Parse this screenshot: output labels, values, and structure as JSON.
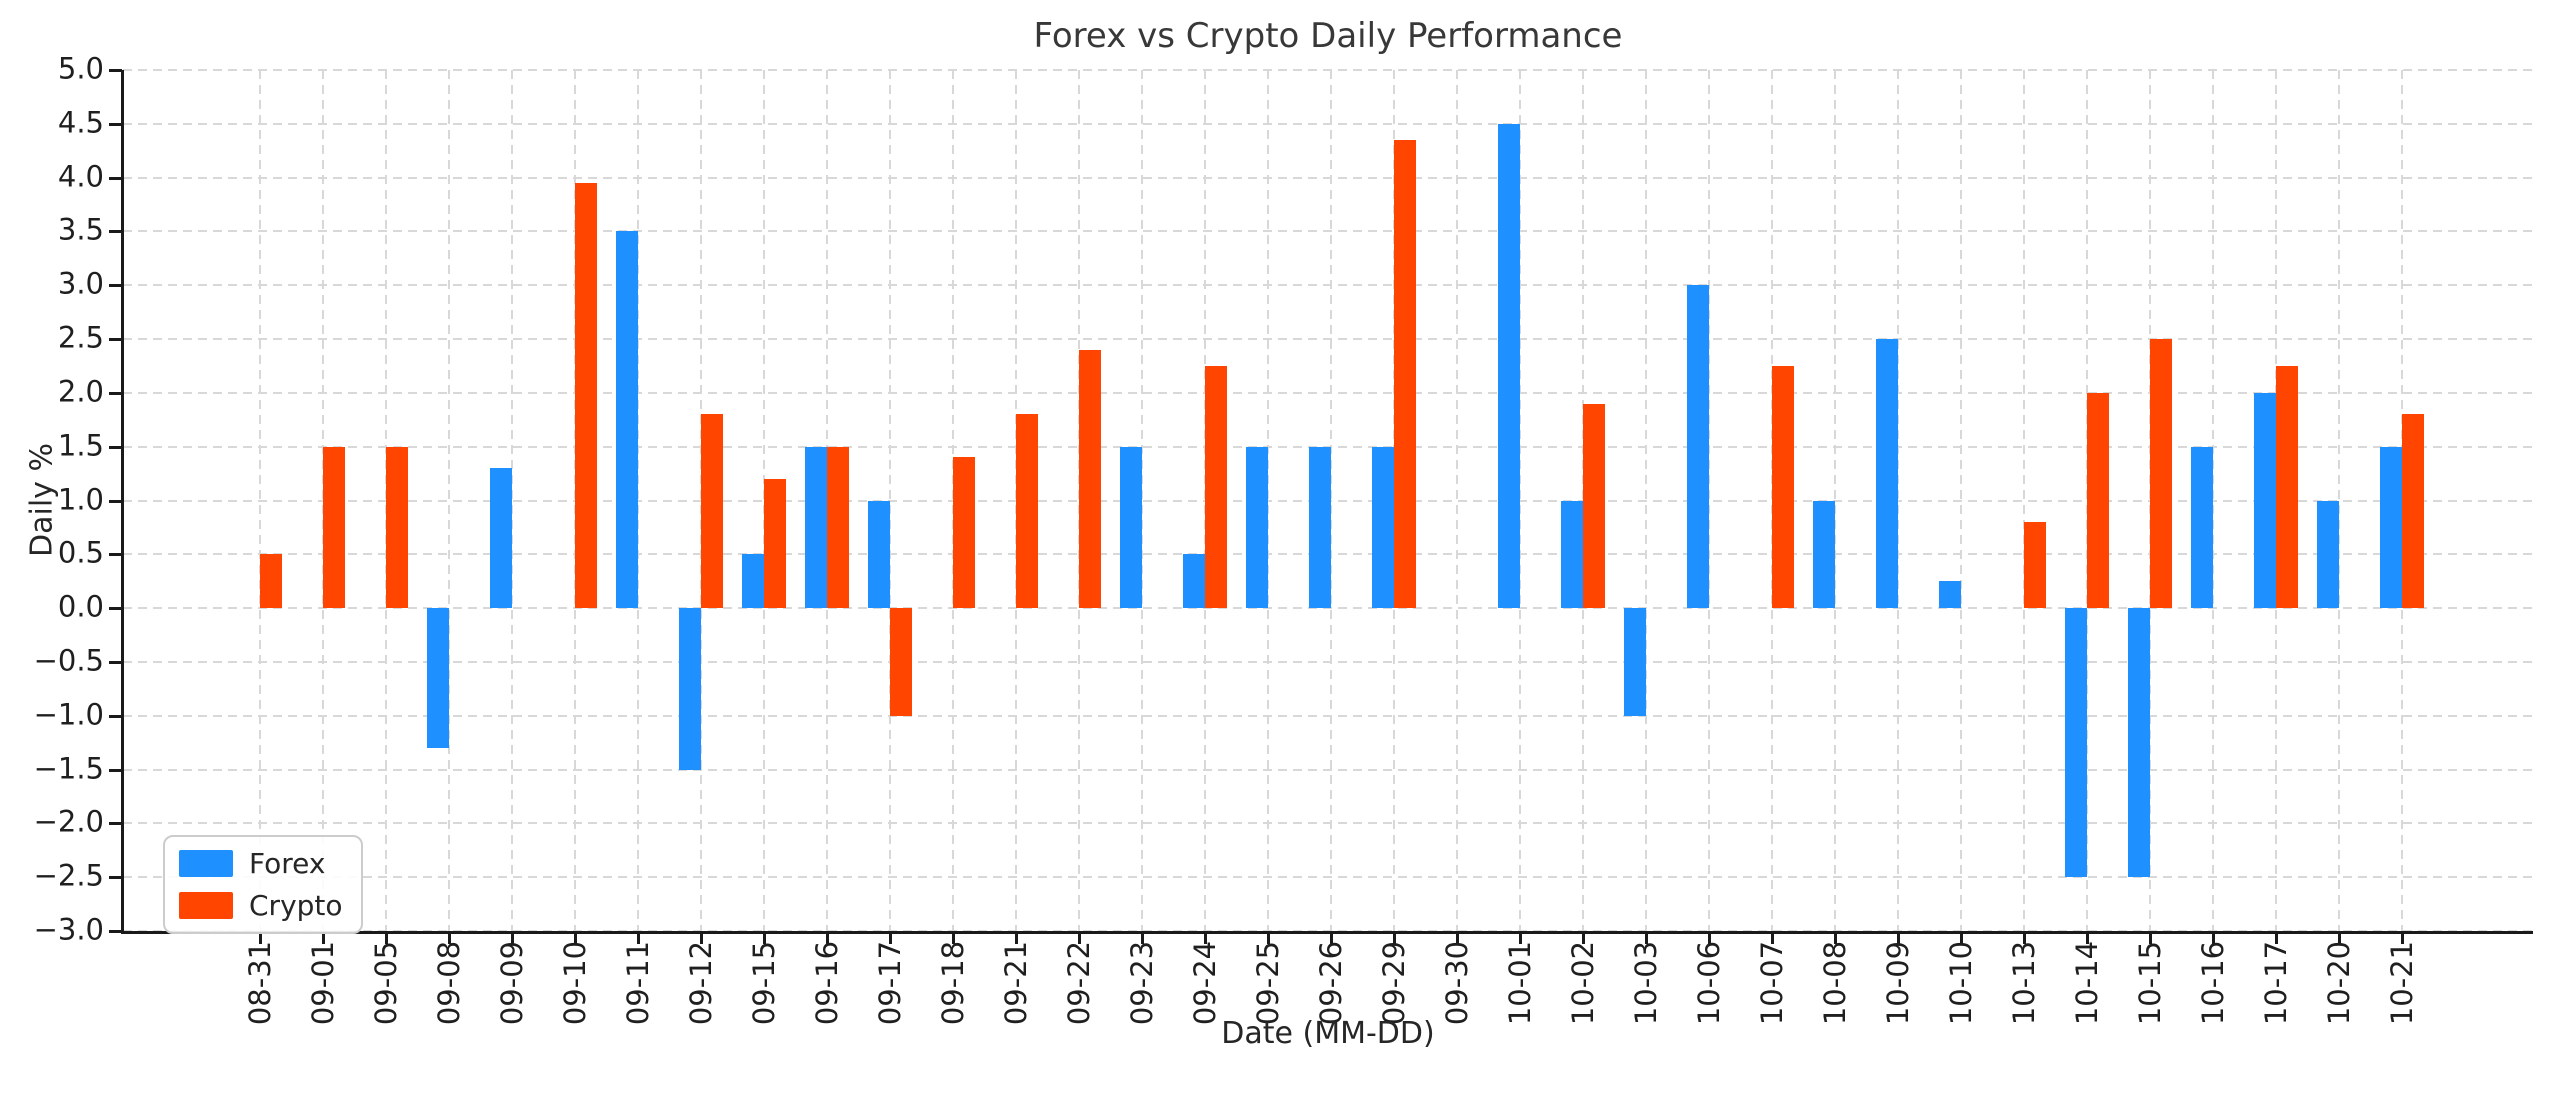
{
  "title": "Forex vs Crypto Daily Performance",
  "axes": {
    "xlabel": "Date (MM-DD)",
    "ylabel": "Daily %",
    "y_tick_labels": [
      "5.0",
      "4.5",
      "4.0",
      "3.5",
      "3.0",
      "2.5",
      "2.0",
      "1.5",
      "1.0",
      "0.5",
      "0.0",
      "−0.5",
      "−1.0",
      "−1.5",
      "−2.0",
      "−2.5",
      "−3.0"
    ]
  },
  "legend": {
    "items": [
      {
        "label": "Forex",
        "color": "#1E90FF"
      },
      {
        "label": "Crypto",
        "color": "#FF4500"
      }
    ],
    "position": "lower left"
  },
  "colors": {
    "forex": "#1E90FF",
    "crypto": "#FF4500",
    "grid": "#d8d8d8",
    "spine": "#1a1a1a",
    "title_text": "#383838",
    "background": "#ffffff"
  },
  "chart_data": {
    "type": "bar",
    "title": "Forex vs Crypto Daily Performance",
    "xlabel": "Date (MM-DD)",
    "ylabel": "Daily %",
    "ylim": [
      -3.0,
      5.0
    ],
    "ytick_step": 0.5,
    "grid": true,
    "legend_position": "lower left",
    "categories": [
      "08-31",
      "09-01",
      "09-05",
      "09-08",
      "09-09",
      "09-10",
      "09-11",
      "09-12",
      "09-15",
      "09-16",
      "09-17",
      "09-18",
      "09-21",
      "09-22",
      "09-23",
      "09-24",
      "09-25",
      "09-26",
      "09-29",
      "09-30",
      "10-01",
      "10-02",
      "10-03",
      "10-06",
      "10-07",
      "10-08",
      "10-09",
      "10-10",
      "10-13",
      "10-14",
      "10-15",
      "10-16",
      "10-17",
      "10-20",
      "10-21"
    ],
    "series": [
      {
        "name": "Forex",
        "color": "#1E90FF",
        "values": [
          null,
          null,
          null,
          -1.3,
          1.3,
          null,
          3.5,
          -1.5,
          0.5,
          1.5,
          1.0,
          null,
          null,
          null,
          1.5,
          0.5,
          1.5,
          1.5,
          1.5,
          null,
          4.5,
          1.0,
          -1.0,
          3.0,
          null,
          1.0,
          2.5,
          0.25,
          null,
          -2.5,
          -2.5,
          1.5,
          2.0,
          1.0,
          1.5
        ]
      },
      {
        "name": "Crypto",
        "color": "#FF4500",
        "values": [
          0.5,
          1.5,
          1.5,
          null,
          null,
          3.95,
          null,
          1.8,
          1.2,
          1.5,
          -1.0,
          1.4,
          1.8,
          2.4,
          null,
          2.25,
          null,
          null,
          4.35,
          null,
          null,
          1.9,
          null,
          null,
          2.25,
          null,
          null,
          null,
          0.8,
          2.0,
          2.5,
          null,
          2.25,
          null,
          1.8
        ]
      }
    ]
  }
}
